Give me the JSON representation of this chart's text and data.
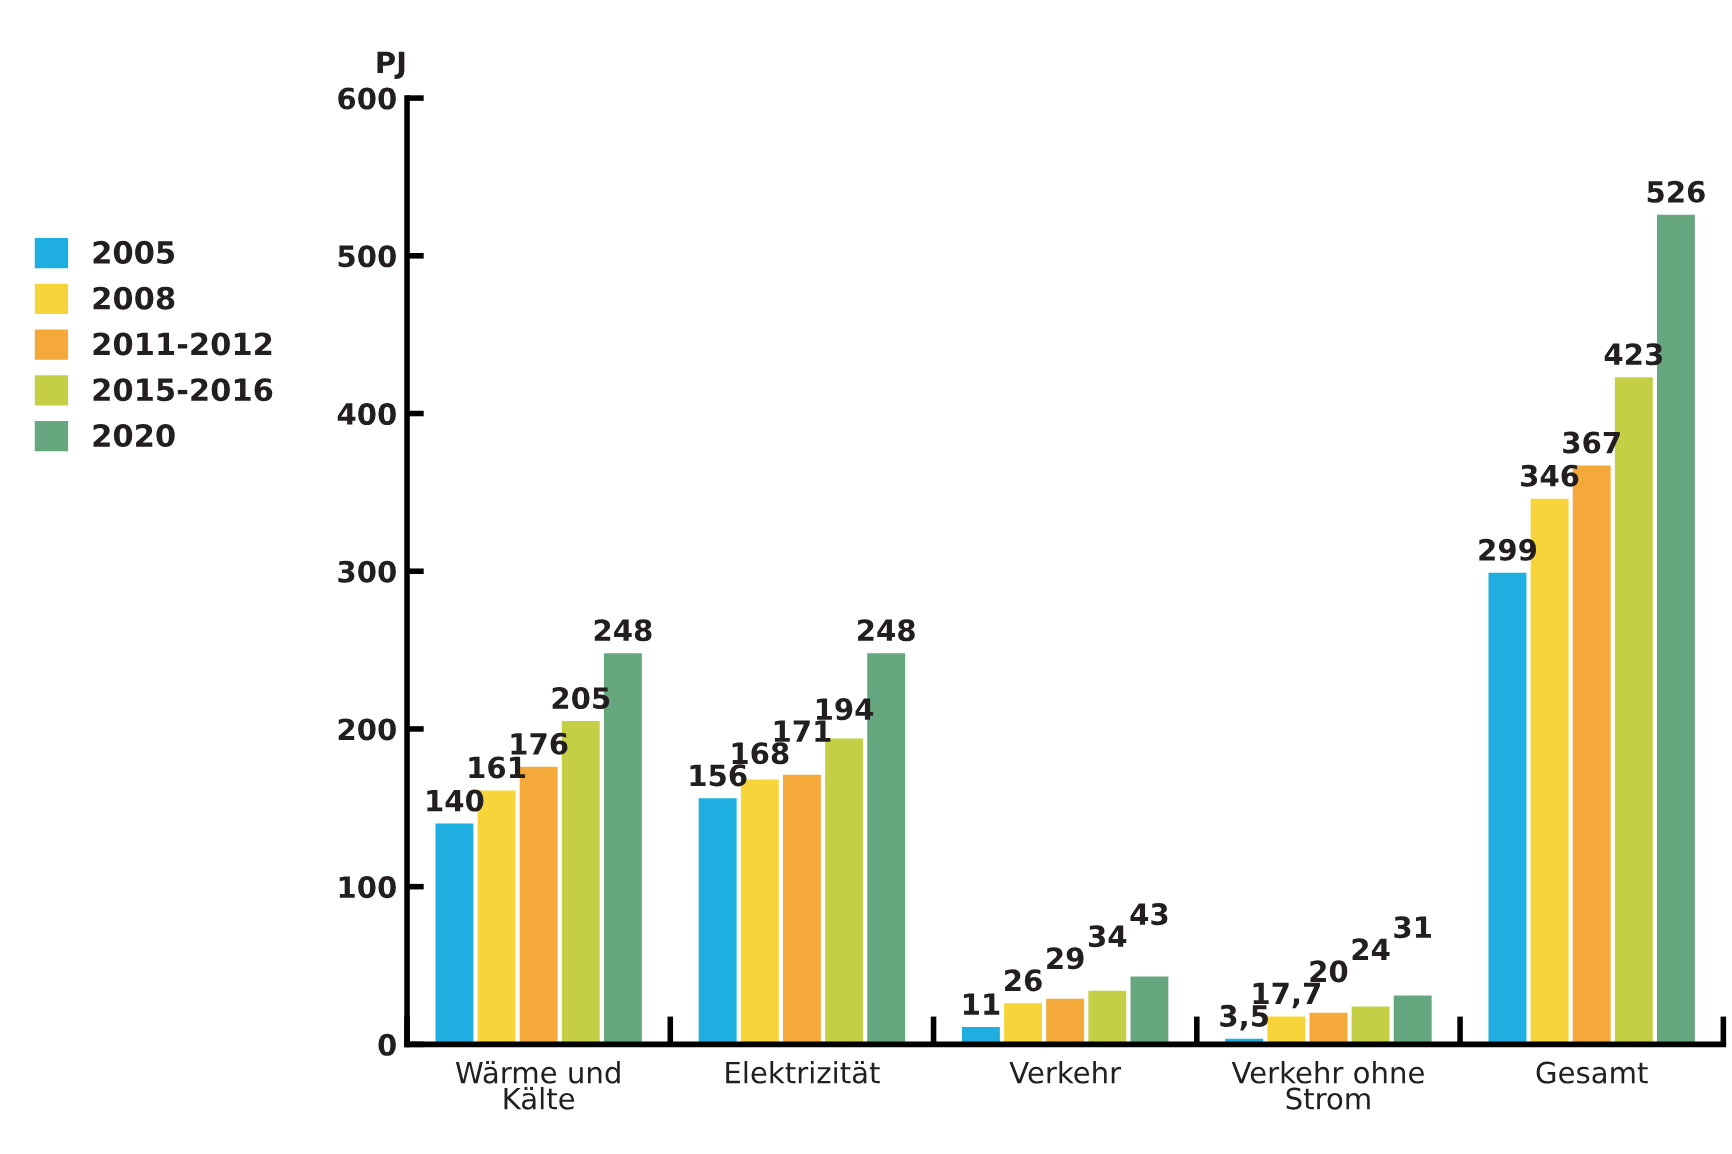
{
  "chart_data": {
    "type": "bar",
    "ylabel": "PJ",
    "categories": [
      "Wärme und\nKälte",
      "Elektrizität",
      "Verkehr",
      "Verkehr ohne\nStrom",
      "Gesamt"
    ],
    "series": [
      {
        "name": "2005",
        "color": "#1eaee0",
        "values": [
          140,
          156,
          11,
          3.5,
          299
        ],
        "value_labels": [
          "140",
          "156",
          "11",
          "3,5",
          "299"
        ]
      },
      {
        "name": "2008",
        "color": "#f7d53a",
        "values": [
          161,
          168,
          26,
          17.7,
          346
        ],
        "value_labels": [
          "161",
          "168",
          "26",
          "17,7",
          "346"
        ]
      },
      {
        "name": "2011-2012",
        "color": "#f6a93b",
        "values": [
          176,
          171,
          29,
          20,
          367
        ],
        "value_labels": [
          "176",
          "171",
          "29",
          "20",
          "367"
        ]
      },
      {
        "name": "2015-2016",
        "color": "#c5cf45",
        "values": [
          205,
          194,
          34,
          24,
          423
        ],
        "value_labels": [
          "205",
          "194",
          "34",
          "24",
          "423"
        ]
      },
      {
        "name": "2020",
        "color": "#67a77f",
        "values": [
          248,
          248,
          43,
          31,
          526
        ],
        "value_labels": [
          "248",
          "248",
          "43",
          "31",
          "526"
        ]
      }
    ],
    "ylim": [
      0,
      600
    ],
    "yticks": [
      0,
      100,
      200,
      300,
      400,
      500,
      600
    ],
    "grid": false,
    "legend": "left"
  }
}
